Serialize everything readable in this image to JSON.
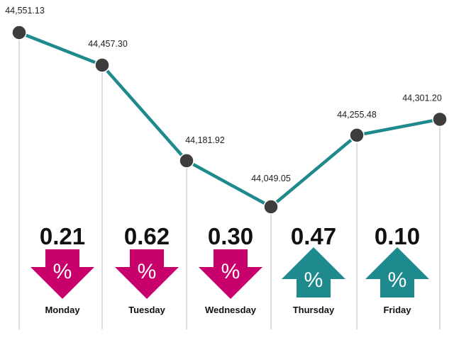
{
  "chart_data": {
    "type": "line",
    "categories": [
      "Monday",
      "Tuesday",
      "Wednesday",
      "Thursday",
      "Friday"
    ],
    "x": [
      "",
      "Monday",
      "Tuesday",
      "Wednesday",
      "Thursday",
      "Friday"
    ],
    "values": [
      44551.13,
      44457.3,
      44181.92,
      44049.05,
      44255.48,
      44301.2
    ],
    "value_labels": [
      "44,551.13",
      "44,457.30",
      "44,181.92",
      "44,049.05",
      "44,255.48",
      "44,301.20"
    ],
    "daily_change": [
      {
        "day": "Monday",
        "value": 0.21,
        "label": "0.21",
        "direction": "down"
      },
      {
        "day": "Tuesday",
        "value": 0.62,
        "label": "0.62",
        "direction": "down"
      },
      {
        "day": "Wednesday",
        "value": 0.3,
        "label": "0.30",
        "direction": "down"
      },
      {
        "day": "Thursday",
        "value": 0.47,
        "label": "0.47",
        "direction": "up"
      },
      {
        "day": "Friday",
        "value": 0.1,
        "label": "0.10",
        "direction": "up"
      }
    ],
    "percent_symbol": "%",
    "title": "",
    "xlabel": "",
    "ylabel": "",
    "ylim": [
      44049.05,
      44551.13
    ],
    "grid": false,
    "legend": "none",
    "colors": {
      "line": "#1f8a8d",
      "point": "#3d3d3d",
      "down": "#c8006b",
      "up": "#1f8a8d",
      "guide": "#b8b8b8"
    }
  }
}
